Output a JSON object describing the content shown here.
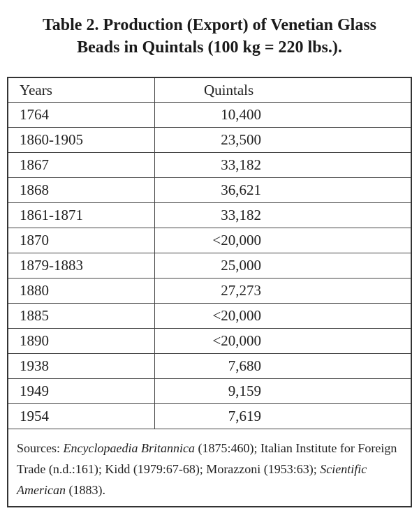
{
  "header": {
    "title_line1": "Table 2.  Production (Export) of Venetian Glass",
    "title_line2": "Beads in Quintals (100 kg = 220 lbs.)."
  },
  "table": {
    "columns": [
      "Years",
      "Quintals"
    ],
    "rows": [
      [
        "1764",
        "10,400"
      ],
      [
        "1860-1905",
        "23,500"
      ],
      [
        "1867",
        "33,182"
      ],
      [
        "1868",
        "36,621"
      ],
      [
        "1861-1871",
        "33,182"
      ],
      [
        "1870",
        "<20,000"
      ],
      [
        "1879-1883",
        "25,000"
      ],
      [
        "1880",
        "27,273"
      ],
      [
        "1885",
        "<20,000"
      ],
      [
        "1890",
        "<20,000"
      ],
      [
        "1938",
        "7,680"
      ],
      [
        "1949",
        "9,159"
      ],
      [
        "1954",
        "7,619"
      ]
    ]
  },
  "sources": {
    "parts": [
      "Sources: ",
      "Encyclopaedia Britannica",
      " (1875:460); Italian Institute for Foreign Trade (n.d.:161); Kidd (1979:67-68); Morazzoni (1953:63); ",
      "Scientific American",
      " (1883)."
    ]
  }
}
